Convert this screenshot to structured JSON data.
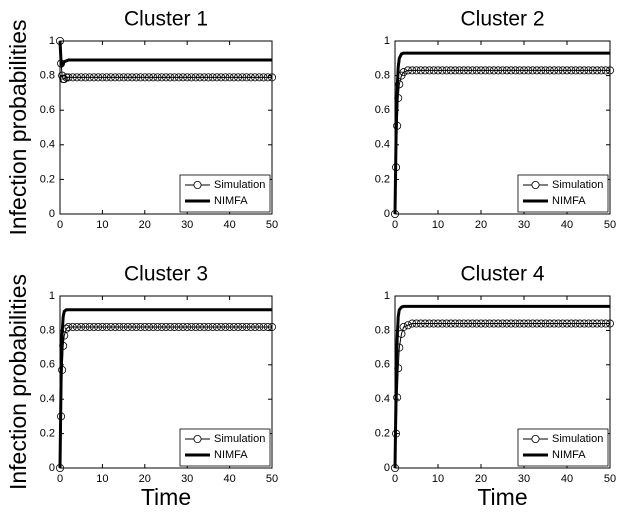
{
  "chart_data": [
    {
      "type": "line",
      "title": "Cluster 1",
      "ylabel": "Infection probabilities",
      "x": [
        0,
        0.25,
        0.5,
        0.75,
        1,
        1.5,
        2,
        3,
        4,
        5,
        6,
        7,
        8,
        9,
        10,
        11,
        12,
        13,
        14,
        15,
        16,
        17,
        18,
        19,
        20,
        21,
        22,
        23,
        24,
        25,
        26,
        27,
        28,
        29,
        30,
        31,
        32,
        33,
        34,
        35,
        36,
        37,
        38,
        39,
        40,
        41,
        42,
        43,
        44,
        45,
        46,
        47,
        48,
        49,
        50
      ],
      "series": [
        {
          "name": "Simulation",
          "color": "#000000",
          "marker": "circle",
          "values": [
            1,
            0.87,
            0.8,
            0.78,
            0.78,
            0.79,
            0.79,
            0.79,
            0.79,
            0.79,
            0.79,
            0.79,
            0.79,
            0.79,
            0.79,
            0.79,
            0.79,
            0.79,
            0.79,
            0.79,
            0.79,
            0.79,
            0.79,
            0.79,
            0.79,
            0.79,
            0.79,
            0.79,
            0.79,
            0.79,
            0.79,
            0.79,
            0.79,
            0.79,
            0.79,
            0.79,
            0.79,
            0.79,
            0.79,
            0.79,
            0.79,
            0.79,
            0.79,
            0.79,
            0.79,
            0.79,
            0.79,
            0.79,
            0.79,
            0.79,
            0.79,
            0.79,
            0.79,
            0.79,
            0.79
          ]
        },
        {
          "name": "NIMFA",
          "color": "#000000",
          "values": [
            1,
            0.88,
            0.86,
            0.87,
            0.88,
            0.885,
            0.89,
            0.89,
            0.89,
            0.89,
            0.89,
            0.89,
            0.89,
            0.89,
            0.89,
            0.89,
            0.89,
            0.89,
            0.89,
            0.89,
            0.89,
            0.89,
            0.89,
            0.89,
            0.89,
            0.89,
            0.89,
            0.89,
            0.89,
            0.89,
            0.89,
            0.89,
            0.89,
            0.89,
            0.89,
            0.89,
            0.89,
            0.89,
            0.89,
            0.89,
            0.89,
            0.89,
            0.89,
            0.89,
            0.89,
            0.89,
            0.89,
            0.89,
            0.89,
            0.89,
            0.89,
            0.89,
            0.89,
            0.89,
            0.89
          ]
        }
      ],
      "xlim": [
        0,
        50
      ],
      "ylim": [
        0,
        1
      ],
      "xticks": [
        0,
        10,
        20,
        30,
        40,
        50
      ],
      "yticks": [
        0,
        0.2,
        0.4,
        0.6,
        0.8,
        1
      ],
      "legend": "lower right"
    },
    {
      "type": "line",
      "title": "Cluster 2",
      "x": [
        0,
        0.25,
        0.5,
        0.75,
        1,
        1.5,
        2,
        3,
        4,
        5,
        6,
        7,
        8,
        9,
        10,
        11,
        12,
        13,
        14,
        15,
        16,
        17,
        18,
        19,
        20,
        21,
        22,
        23,
        24,
        25,
        26,
        27,
        28,
        29,
        30,
        31,
        32,
        33,
        34,
        35,
        36,
        37,
        38,
        39,
        40,
        41,
        42,
        43,
        44,
        45,
        46,
        47,
        48,
        49,
        50
      ],
      "series": [
        {
          "name": "Simulation",
          "color": "#000000",
          "marker": "circle",
          "values": [
            0,
            0.27,
            0.51,
            0.67,
            0.75,
            0.8,
            0.82,
            0.83,
            0.83,
            0.83,
            0.83,
            0.83,
            0.83,
            0.83,
            0.83,
            0.83,
            0.83,
            0.83,
            0.83,
            0.83,
            0.83,
            0.83,
            0.83,
            0.83,
            0.83,
            0.83,
            0.83,
            0.83,
            0.83,
            0.83,
            0.83,
            0.83,
            0.83,
            0.83,
            0.83,
            0.83,
            0.83,
            0.83,
            0.83,
            0.83,
            0.83,
            0.83,
            0.83,
            0.83,
            0.83,
            0.83,
            0.83,
            0.83,
            0.83,
            0.83,
            0.83,
            0.83,
            0.83,
            0.83,
            0.83
          ]
        },
        {
          "name": "NIMFA",
          "color": "#000000",
          "values": [
            0,
            0.45,
            0.72,
            0.85,
            0.9,
            0.925,
            0.93,
            0.93,
            0.93,
            0.93,
            0.93,
            0.93,
            0.93,
            0.93,
            0.93,
            0.93,
            0.93,
            0.93,
            0.93,
            0.93,
            0.93,
            0.93,
            0.93,
            0.93,
            0.93,
            0.93,
            0.93,
            0.93,
            0.93,
            0.93,
            0.93,
            0.93,
            0.93,
            0.93,
            0.93,
            0.93,
            0.93,
            0.93,
            0.93,
            0.93,
            0.93,
            0.93,
            0.93,
            0.93,
            0.93,
            0.93,
            0.93,
            0.93,
            0.93,
            0.93,
            0.93,
            0.93,
            0.93,
            0.93,
            0.93
          ]
        }
      ],
      "xlim": [
        0,
        50
      ],
      "ylim": [
        0,
        1
      ],
      "xticks": [
        0,
        10,
        20,
        30,
        40,
        50
      ],
      "yticks": [
        0,
        0.2,
        0.4,
        0.6,
        0.8,
        1
      ],
      "legend": "lower right"
    },
    {
      "type": "line",
      "title": "Cluster 3",
      "ylabel": "Infection probabilities",
      "xlabel": "Time",
      "x": [
        0,
        0.25,
        0.5,
        0.75,
        1,
        1.5,
        2,
        3,
        4,
        5,
        6,
        7,
        8,
        9,
        10,
        11,
        12,
        13,
        14,
        15,
        16,
        17,
        18,
        19,
        20,
        21,
        22,
        23,
        24,
        25,
        26,
        27,
        28,
        29,
        30,
        31,
        32,
        33,
        34,
        35,
        36,
        37,
        38,
        39,
        40,
        41,
        42,
        43,
        44,
        45,
        46,
        47,
        48,
        49,
        50
      ],
      "series": [
        {
          "name": "Simulation",
          "color": "#000000",
          "marker": "circle",
          "values": [
            0,
            0.3,
            0.57,
            0.71,
            0.77,
            0.81,
            0.82,
            0.82,
            0.82,
            0.82,
            0.82,
            0.82,
            0.82,
            0.82,
            0.82,
            0.82,
            0.82,
            0.82,
            0.82,
            0.82,
            0.82,
            0.82,
            0.82,
            0.82,
            0.82,
            0.82,
            0.82,
            0.82,
            0.82,
            0.82,
            0.82,
            0.82,
            0.82,
            0.82,
            0.82,
            0.82,
            0.82,
            0.82,
            0.82,
            0.82,
            0.82,
            0.82,
            0.82,
            0.82,
            0.82,
            0.82,
            0.82,
            0.82,
            0.82,
            0.82,
            0.82,
            0.82,
            0.82,
            0.82,
            0.82
          ]
        },
        {
          "name": "NIMFA",
          "color": "#000000",
          "values": [
            0,
            0.5,
            0.78,
            0.88,
            0.91,
            0.92,
            0.92,
            0.92,
            0.92,
            0.92,
            0.92,
            0.92,
            0.92,
            0.92,
            0.92,
            0.92,
            0.92,
            0.92,
            0.92,
            0.92,
            0.92,
            0.92,
            0.92,
            0.92,
            0.92,
            0.92,
            0.92,
            0.92,
            0.92,
            0.92,
            0.92,
            0.92,
            0.92,
            0.92,
            0.92,
            0.92,
            0.92,
            0.92,
            0.92,
            0.92,
            0.92,
            0.92,
            0.92,
            0.92,
            0.92,
            0.92,
            0.92,
            0.92,
            0.92,
            0.92,
            0.92,
            0.92,
            0.92,
            0.92,
            0.92
          ]
        }
      ],
      "xlim": [
        0,
        50
      ],
      "ylim": [
        0,
        1
      ],
      "xticks": [
        0,
        10,
        20,
        30,
        40,
        50
      ],
      "yticks": [
        0,
        0.2,
        0.4,
        0.6,
        0.8,
        1
      ],
      "legend": "lower right"
    },
    {
      "type": "line",
      "title": "Cluster 4",
      "xlabel": "Time",
      "x": [
        0,
        0.25,
        0.5,
        0.75,
        1,
        1.5,
        2,
        3,
        4,
        5,
        6,
        7,
        8,
        9,
        10,
        11,
        12,
        13,
        14,
        15,
        16,
        17,
        18,
        19,
        20,
        21,
        22,
        23,
        24,
        25,
        26,
        27,
        28,
        29,
        30,
        31,
        32,
        33,
        34,
        35,
        36,
        37,
        38,
        39,
        40,
        41,
        42,
        43,
        44,
        45,
        46,
        47,
        48,
        49,
        50
      ],
      "series": [
        {
          "name": "Simulation",
          "color": "#000000",
          "marker": "circle",
          "values": [
            0,
            0.2,
            0.41,
            0.58,
            0.7,
            0.78,
            0.82,
            0.83,
            0.84,
            0.84,
            0.84,
            0.84,
            0.84,
            0.84,
            0.84,
            0.84,
            0.84,
            0.84,
            0.84,
            0.84,
            0.84,
            0.84,
            0.84,
            0.84,
            0.84,
            0.84,
            0.84,
            0.84,
            0.84,
            0.84,
            0.84,
            0.84,
            0.84,
            0.84,
            0.84,
            0.84,
            0.84,
            0.84,
            0.84,
            0.84,
            0.84,
            0.84,
            0.84,
            0.84,
            0.84,
            0.84,
            0.84,
            0.84,
            0.84,
            0.84,
            0.84,
            0.84,
            0.84,
            0.84,
            0.84
          ]
        },
        {
          "name": "NIMFA",
          "color": "#000000",
          "values": [
            0,
            0.45,
            0.75,
            0.88,
            0.92,
            0.935,
            0.94,
            0.94,
            0.94,
            0.94,
            0.94,
            0.94,
            0.94,
            0.94,
            0.94,
            0.94,
            0.94,
            0.94,
            0.94,
            0.94,
            0.94,
            0.94,
            0.94,
            0.94,
            0.94,
            0.94,
            0.94,
            0.94,
            0.94,
            0.94,
            0.94,
            0.94,
            0.94,
            0.94,
            0.94,
            0.94,
            0.94,
            0.94,
            0.94,
            0.94,
            0.94,
            0.94,
            0.94,
            0.94,
            0.94,
            0.94,
            0.94,
            0.94,
            0.94,
            0.94,
            0.94,
            0.94,
            0.94,
            0.94,
            0.94
          ]
        }
      ],
      "xlim": [
        0,
        50
      ],
      "ylim": [
        0,
        1
      ],
      "xticks": [
        0,
        10,
        20,
        30,
        40,
        50
      ],
      "yticks": [
        0,
        0.2,
        0.4,
        0.6,
        0.8,
        1
      ],
      "legend": "lower right"
    }
  ]
}
